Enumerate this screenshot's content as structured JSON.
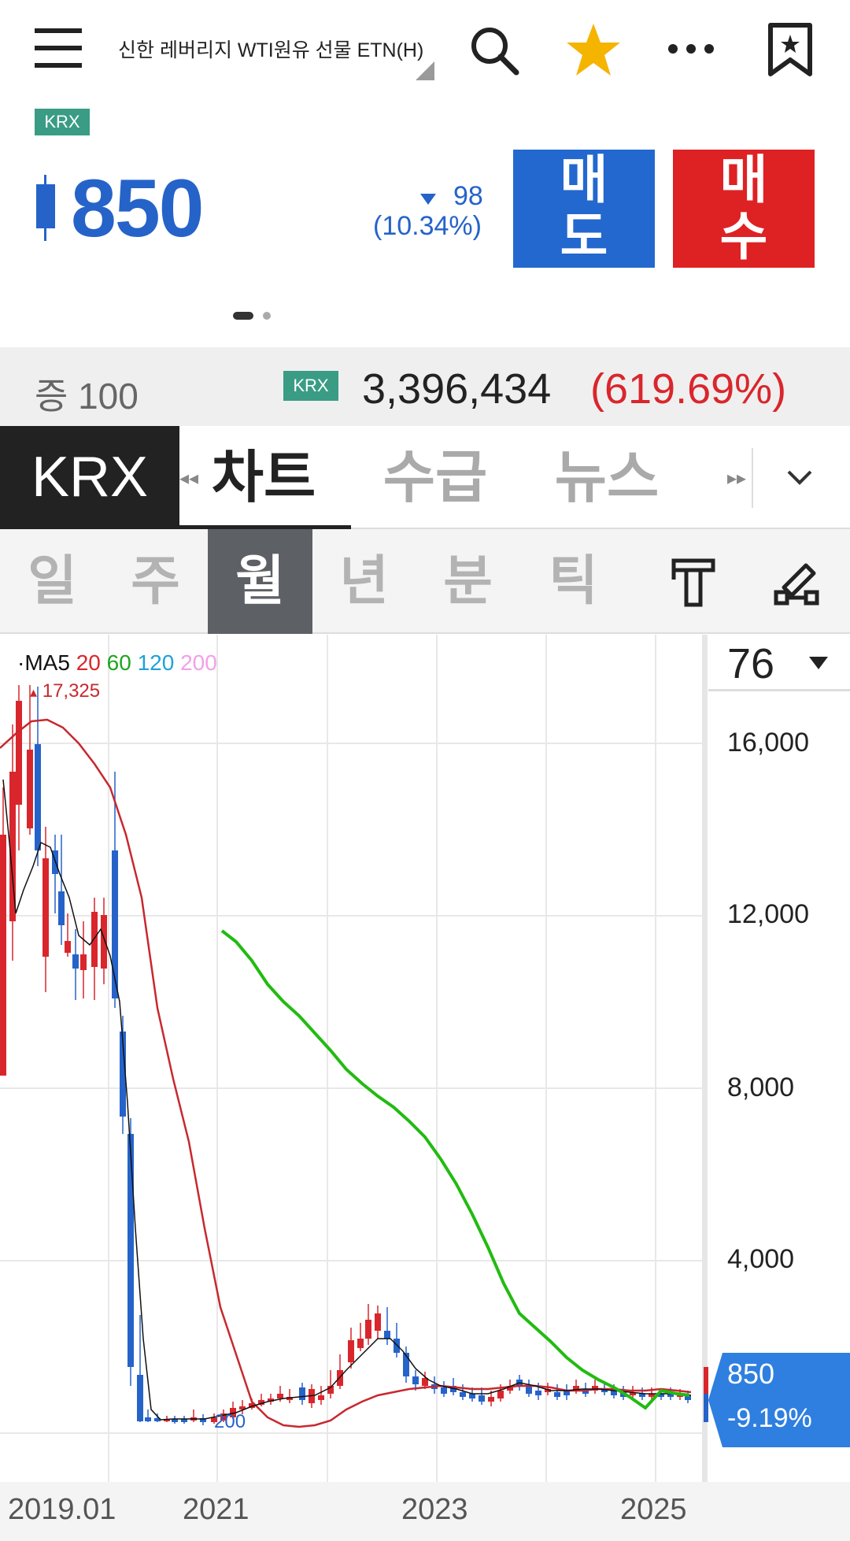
{
  "topbar": {
    "title": "신한 레버리지 WTI원유 선물 ETN(H)",
    "icons": [
      "menu-icon",
      "search-icon",
      "star-icon",
      "more-icon",
      "bookmark-icon"
    ]
  },
  "quote": {
    "market_badge": "KRX",
    "price": "850",
    "change": "98",
    "change_pct": "(10.34%)",
    "sell_label_1": "매",
    "sell_label_2": "도",
    "buy_label_1": "매",
    "buy_label_2": "수",
    "pager_pages": 2,
    "pager_active": 1
  },
  "volume_bar": {
    "margin_label": "증 100",
    "market_badge": "KRX",
    "volume": "3,396,434",
    "volume_pct": "(619.69%)"
  },
  "tabs": {
    "exchange": "KRX",
    "items": [
      "차트",
      "수급",
      "뉴스"
    ],
    "active": "차트"
  },
  "periods": {
    "items": [
      "일",
      "주",
      "월",
      "년",
      "분",
      "틱"
    ],
    "active": "월"
  },
  "chart": {
    "legend_prefix": "·MA5",
    "legend_items": [
      {
        "label": "20",
        "color": "#d9262c"
      },
      {
        "label": "60",
        "color": "#1fa51f"
      },
      {
        "label": "120",
        "color": "#1fa2d6"
      },
      {
        "label": "200",
        "color": "#f2a0e8"
      }
    ],
    "count_label": "76",
    "high_label": "17,325",
    "low_label": "200",
    "current_price": "850",
    "current_pct": "-9.19%",
    "y_ticks": [
      "16,000",
      "12,000",
      "8,000",
      "4,000"
    ],
    "x_ticks": [
      "2019.01",
      "2021",
      "2023",
      "2025"
    ],
    "colors": {
      "up": "#d9262c",
      "down": "#2563c9",
      "ma5": "#111111",
      "ma20": "#c8282e",
      "ma60": "#22bb11",
      "price_tag": "#2f7fe0"
    }
  }
}
